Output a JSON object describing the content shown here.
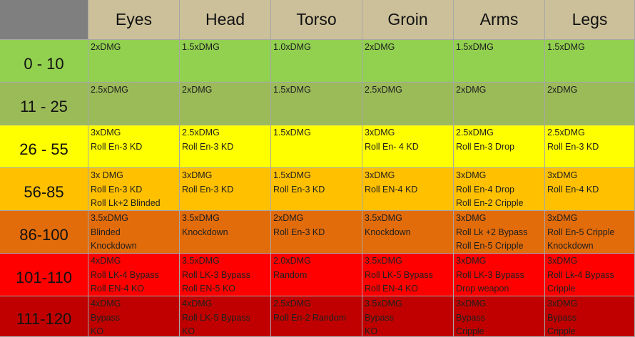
{
  "header": {
    "corner": "",
    "columns": [
      "Eyes",
      "Head",
      "Torso",
      "Groin",
      "Arms",
      "Legs"
    ]
  },
  "rows": [
    {
      "range": "0 - 10",
      "color": "#92d050",
      "cells": [
        [
          "2xDMG"
        ],
        [
          "1.5xDMG"
        ],
        [
          "1.0xDMG"
        ],
        [
          "2xDMG"
        ],
        [
          "1.5xDMG"
        ],
        [
          "1.5xDMG"
        ]
      ]
    },
    {
      "range": "11 - 25",
      "color": "#9bbb59",
      "cells": [
        [
          "2.5xDMG"
        ],
        [
          "2xDMG"
        ],
        [
          "1.5xDMG"
        ],
        [
          "2.5xDMG"
        ],
        [
          "2xDMG"
        ],
        [
          "2xDMG"
        ]
      ]
    },
    {
      "range": "26 - 55",
      "color": "#ffff00",
      "cells": [
        [
          "3xDMG",
          "Roll En-3 KD"
        ],
        [
          "2.5xDMG",
          "Roll En-3 KD"
        ],
        [
          "1.5xDMG"
        ],
        [
          "3xDMG",
          "Roll En- 4 KD"
        ],
        [
          "2.5xDMG",
          "Roll En-3 Drop"
        ],
        [
          "2.5xDMG",
          "Roll En-3 KD"
        ]
      ]
    },
    {
      "range": "56-85",
      "color": "#ffc000",
      "cells": [
        [
          "3x DMG",
          "Roll En-3 KD",
          "Roll Lk+2 Blinded"
        ],
        [
          "3xDMG",
          "Roll En-3 KD"
        ],
        [
          "1.5xDMG",
          "Roll En-3 KD"
        ],
        [
          "3xDMG",
          "Roll EN-4 KD"
        ],
        [
          "3xDMG",
          "Roll En-4 Drop",
          "Roll En-2 Cripple"
        ],
        [
          "3xDMG",
          "Roll En-4 KD"
        ]
      ]
    },
    {
      "range": "86-100",
      "color": "#e36c0a",
      "cells": [
        [
          "3.5xDMG",
          "Blinded",
          "Knockdown"
        ],
        [
          "3.5xDMG",
          "Knockdown"
        ],
        [
          "2xDMG",
          "Roll En-3 KD"
        ],
        [
          "3.5xDMG",
          "Knockdown"
        ],
        [
          "3xDMG",
          "Roll Lk +2 Bypass",
          "Roll En-5 Cripple"
        ],
        [
          "3xDMG",
          "Roll En-5 Cripple",
          "Knockdown"
        ]
      ]
    },
    {
      "range": "101-110",
      "color": "#ff0000",
      "cells": [
        [
          "4xDMG",
          "Roll LK-4 Bypass",
          "Roll EN-4 KO"
        ],
        [
          "3.5xDMG",
          "Roll LK-3 Bypass",
          "Roll EN-5 KO"
        ],
        [
          "2.0xDMG",
          "Random"
        ],
        [
          "3.5xDMG",
          "Roll LK-5 Bypass",
          "Roll EN-4 KO"
        ],
        [
          "3xDMG",
          "Roll LK-3 Bypass",
          "Drop weapon"
        ],
        [
          "3xDMG",
          "Roll Lk-4 Bypass",
          "Cripple"
        ]
      ]
    },
    {
      "range": "111-120",
      "color": "#c00000",
      "cells": [
        [
          "4xDMG",
          "Bypass",
          "KO"
        ],
        [
          "4xDMG",
          "Roll LK-5 Bypass",
          "KO"
        ],
        [
          "2.5xDMG",
          "Roll En-2 Random"
        ],
        [
          "3.5xDMG",
          "Bypass",
          "KO"
        ],
        [
          "3xDMG",
          "Bypass",
          "Cripple"
        ],
        [
          "3xDMG",
          "Bypass",
          "Cripple"
        ]
      ]
    }
  ]
}
